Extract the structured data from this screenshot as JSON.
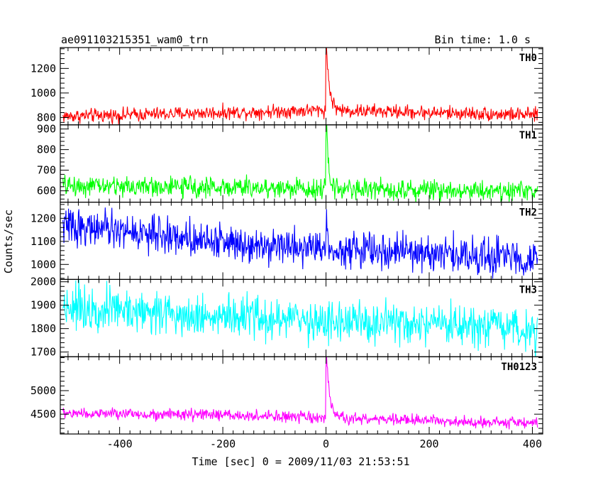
{
  "chart_data": {
    "type": "line",
    "title": "ae091103215351_wam0_trn",
    "bin_time": "Bin time: 1.0 s",
    "xlabel": "Time [sec] 0 = 2009/11/03 21:53:51",
    "ylabel": "Counts/sec",
    "xlim": [
      -515,
      420
    ],
    "x_ticks": [
      -400,
      -200,
      0,
      200,
      400
    ],
    "x_step": 1,
    "panels": [
      {
        "name": "TH0",
        "color": "#ff0000",
        "ylim": [
          740,
          1370
        ],
        "y_ticks": [
          800,
          1000,
          1200
        ],
        "trend": [
          [
            -510,
            810
          ],
          [
            -200,
            840
          ],
          [
            -5,
            860
          ],
          [
            410,
            820
          ]
        ],
        "noise": 40,
        "peak": {
          "t": 1,
          "value": 1370,
          "decay": 6
        }
      },
      {
        "name": "TH1",
        "color": "#00ff00",
        "ylim": [
          545,
          920
        ],
        "y_ticks": [
          600,
          700,
          800,
          900
        ],
        "trend": [
          [
            -510,
            625
          ],
          [
            410,
            600
          ]
        ],
        "noise": 35,
        "peak": {
          "t": 1,
          "value": 920,
          "decay": 4
        }
      },
      {
        "name": "TH2",
        "color": "#0000ff",
        "ylim": [
          935,
          1270
        ],
        "y_ticks": [
          1000,
          1100,
          1200
        ],
        "trend": [
          [
            -510,
            1170
          ],
          [
            -200,
            1100
          ],
          [
            0,
            1070
          ],
          [
            410,
            1025
          ]
        ],
        "noise": 55,
        "peak": {
          "t": 1,
          "value": 1260,
          "decay": 1
        }
      },
      {
        "name": "TH3",
        "color": "#00ffff",
        "ylim": [
          1680,
          2010
        ],
        "y_ticks": [
          1700,
          1800,
          1900,
          2000
        ],
        "trend": [
          [
            -510,
            1900
          ],
          [
            -200,
            1850
          ],
          [
            0,
            1830
          ],
          [
            410,
            1790
          ]
        ],
        "noise": 65,
        "peak": null
      },
      {
        "name": "TH0123",
        "color": "#ff00ff",
        "ylim": [
          4080,
          5720
        ],
        "y_ticks": [
          4500,
          5000
        ],
        "trend": [
          [
            -510,
            4520
          ],
          [
            -200,
            4480
          ],
          [
            -5,
            4420
          ],
          [
            410,
            4310
          ]
        ],
        "noise": 85,
        "peak": {
          "t": 1,
          "value": 5720,
          "decay": 6
        }
      }
    ]
  }
}
